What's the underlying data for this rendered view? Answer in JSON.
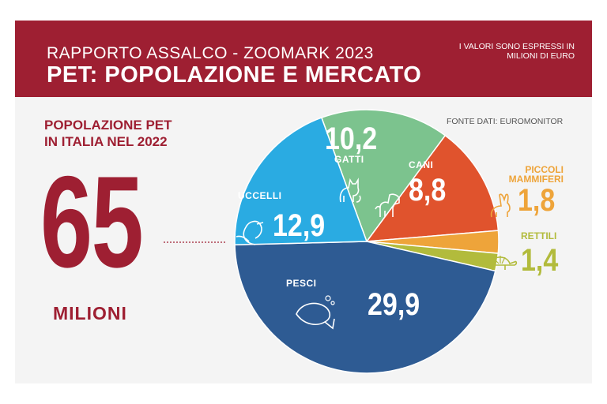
{
  "header": {
    "subtitle": "RAPPORTO ASSALCO - ZOOMARK 2023",
    "title": "PET: POPOLAZIONE E MERCATO",
    "note": "I VALORI  SONO ESPRESSI IN MILIONI DI EURO"
  },
  "source": "FONTE DATI: EUROMONITOR",
  "population": {
    "title_line1": "POPOLAZIONE PET",
    "title_line2": "IN ITALIA NEL 2022",
    "value": "65",
    "unit": "MILIONI"
  },
  "colors": {
    "brand": "#9e1f32",
    "gatti": "#7cc38e",
    "cani": "#e0532d",
    "piccoli_mammiferi": "#eea43a",
    "rettili": "#b2bb3c",
    "pesci": "#2e5b93",
    "uccelli": "#2aabe2"
  },
  "chart_data": {
    "type": "pie",
    "unit": "MILIONI",
    "slices": [
      {
        "label": "GATTI",
        "value": 10.2,
        "display": "10,2",
        "icon": "cat-icon"
      },
      {
        "label": "CANI",
        "value": 8.8,
        "display": "8,8",
        "icon": "dog-icon"
      },
      {
        "label": "PICCOLI MAMMIFERI",
        "value": 1.8,
        "display": "1,8",
        "icon": "rabbit-icon"
      },
      {
        "label": "RETTILI",
        "value": 1.4,
        "display": "1,4",
        "icon": "turtle-icon"
      },
      {
        "label": "PESCI",
        "value": 29.9,
        "display": "29,9",
        "icon": "fish-icon"
      },
      {
        "label": "UCCELLI",
        "value": 12.9,
        "display": "12,9",
        "icon": "bird-icon"
      }
    ]
  }
}
